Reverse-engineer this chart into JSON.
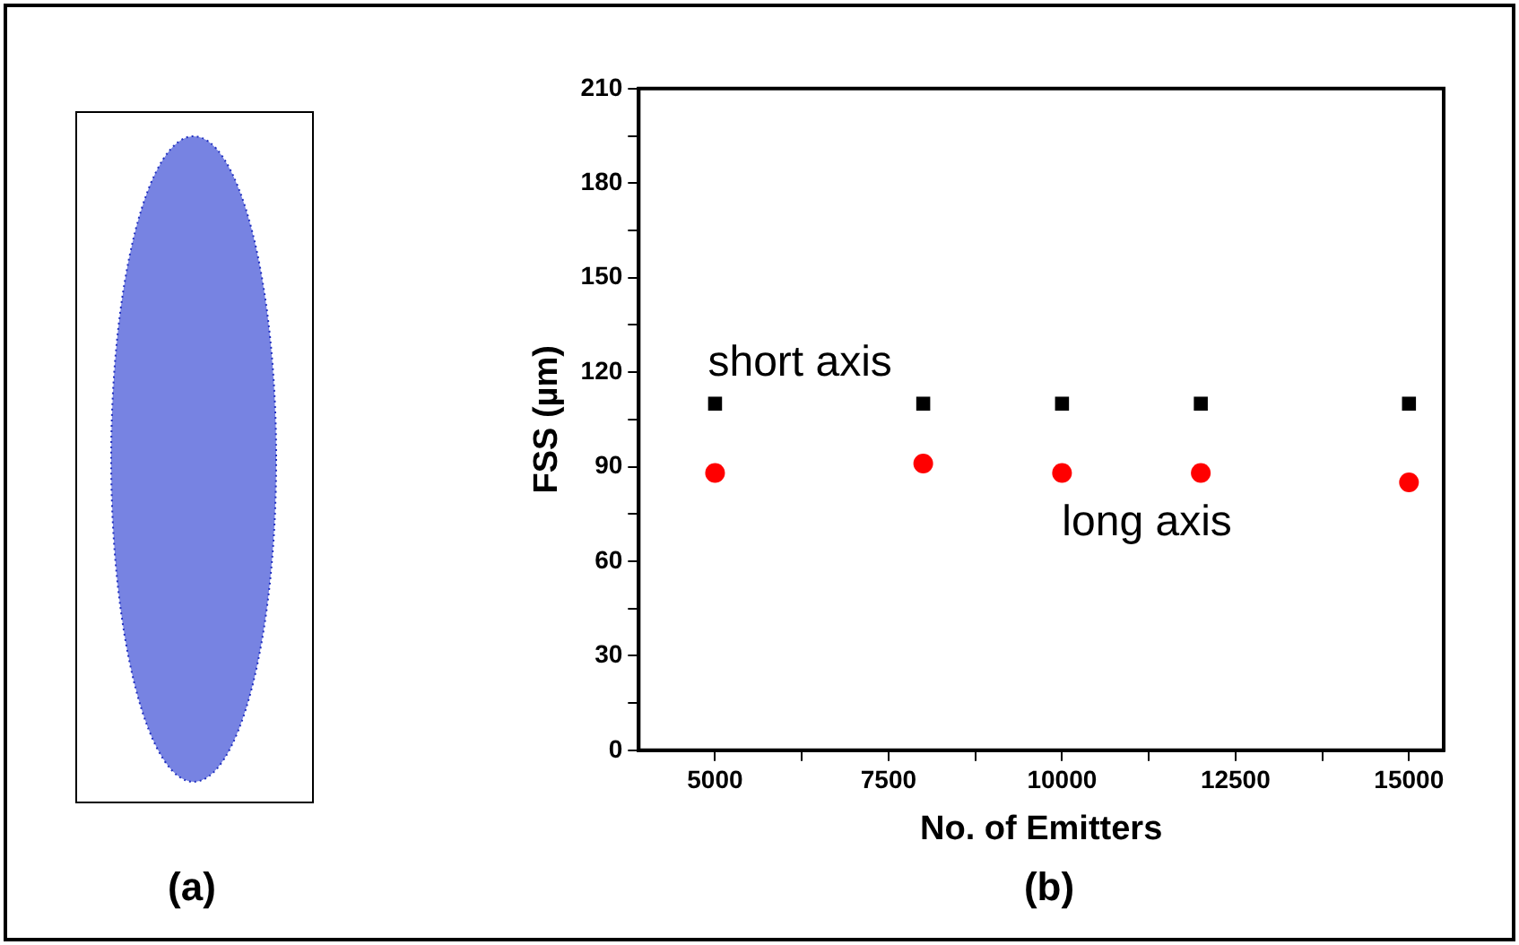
{
  "chart_data": {
    "type": "scatter",
    "xlabel": "No. of Emitters",
    "ylabel": "FSS (µm)",
    "x": [
      5000,
      8000,
      10000,
      12000,
      15000
    ],
    "series": [
      {
        "name": "short axis",
        "color": "#000000",
        "marker": "square",
        "values": [
          110,
          110,
          110,
          110,
          110
        ]
      },
      {
        "name": "long axis",
        "color": "#ff0000",
        "marker": "circle",
        "values": [
          88,
          91,
          88,
          88,
          85
        ]
      }
    ],
    "xlim": [
      3900,
      15500
    ],
    "xticks": [
      5000,
      {
        "value": 6250,
        "label": null
      },
      7500,
      {
        "value": 8750,
        "label": null
      },
      10000,
      {
        "value": 11250,
        "label": null
      },
      12500,
      {
        "value": 13750,
        "label": null
      },
      15000
    ],
    "ylim": [
      0,
      210
    ],
    "yticks": [
      0,
      {
        "value": 15,
        "label": null
      },
      30,
      {
        "value": 45,
        "label": null
      },
      60,
      {
        "value": 75,
        "label": null
      },
      90,
      {
        "value": 105,
        "label": null
      },
      120,
      {
        "value": 135,
        "label": null
      },
      150,
      {
        "value": 165,
        "label": null
      },
      180,
      {
        "value": 195,
        "label": null
      },
      210
    ],
    "grid": false,
    "legend": false,
    "annotations": [
      "(a)",
      "(b)"
    ]
  }
}
